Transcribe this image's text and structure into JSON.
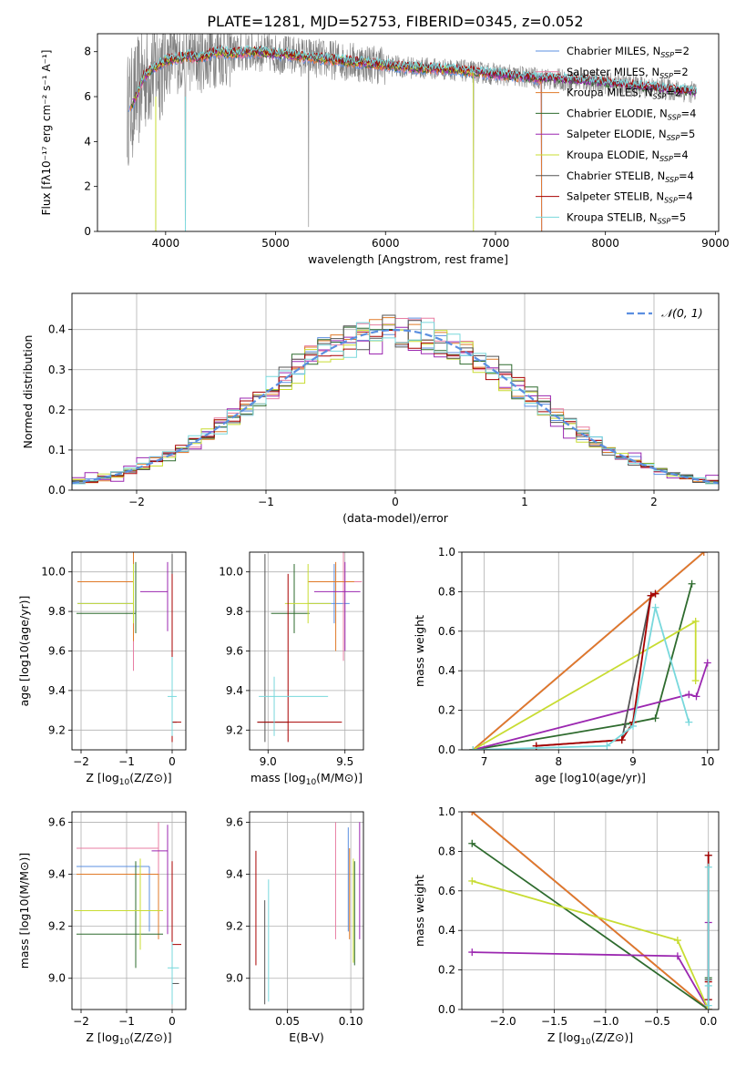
{
  "figure": {
    "title": "PLATE=1281, MJD=52753, FIBERID=0345, z=0.052"
  },
  "colors": {
    "chabrier_miles": "#5b8fe0",
    "salpeter_miles": "#e87ea3",
    "kroupa_miles": "#e07a28",
    "chabrier_elodie": "#2e6b2e",
    "salpeter_elodie": "#9b27b0",
    "kroupa_elodie": "#c8dc32",
    "chabrier_stelib": "#555555",
    "salpeter_stelib": "#a80000",
    "kroupa_stelib": "#78d8dc",
    "gauss": "#5b8fe0",
    "spectrum": "#808080"
  },
  "models": [
    {
      "key": "chabrier_miles",
      "label": "Chabrier MILES, N",
      "nssp": "=2"
    },
    {
      "key": "salpeter_miles",
      "label": "Salpeter MILES, N",
      "nssp": "=2"
    },
    {
      "key": "kroupa_miles",
      "label": "Kroupa MILES, N",
      "nssp": "=2"
    },
    {
      "key": "chabrier_elodie",
      "label": "Chabrier ELODIE, N",
      "nssp": "=4"
    },
    {
      "key": "salpeter_elodie",
      "label": "Salpeter ELODIE, N",
      "nssp": "=5"
    },
    {
      "key": "kroupa_elodie",
      "label": "Kroupa ELODIE, N",
      "nssp": "=4"
    },
    {
      "key": "chabrier_stelib",
      "label": "Chabrier STELIB, N",
      "nssp": "=4"
    },
    {
      "key": "salpeter_stelib",
      "label": "Salpeter STELIB, N",
      "nssp": "=4"
    },
    {
      "key": "kroupa_stelib",
      "label": "Kroupa STELIB, N",
      "nssp": "=5"
    }
  ],
  "legend_ssp_subscript": "SSP",
  "chart_data": [
    {
      "id": "spectrum",
      "type": "line",
      "xlabel": "wavelength [Angstrom, rest frame]",
      "ylabel": "Flux [fλ10⁻¹⁷ erg cm⁻² s⁻¹ A⁻¹]",
      "xlim": [
        3380,
        9030
      ],
      "ylim": [
        0,
        8.8
      ],
      "xticks": [
        4000,
        5000,
        6000,
        7000,
        8000,
        9000
      ],
      "yticks": [
        0,
        2,
        4,
        6,
        8
      ],
      "legend_placement": "right",
      "continuum": {
        "x": [
          3650,
          3700,
          3750,
          3800,
          3900,
          4000,
          4100,
          4200,
          4300,
          4400,
          4500,
          4600,
          4800,
          5000,
          5200,
          5400,
          5600,
          5800,
          6000,
          6200,
          6400,
          6600,
          6800,
          7000,
          7200,
          7400,
          7600,
          7800,
          8000,
          8200,
          8400,
          8600,
          8800
        ],
        "y": [
          5.4,
          5.7,
          6.2,
          6.9,
          7.3,
          7.6,
          7.7,
          7.8,
          7.7,
          7.9,
          8.0,
          7.9,
          8.0,
          7.9,
          7.8,
          7.7,
          7.6,
          7.5,
          7.4,
          7.3,
          7.25,
          7.2,
          7.1,
          7.0,
          6.9,
          6.8,
          6.75,
          6.7,
          6.6,
          6.5,
          6.4,
          6.3,
          6.2
        ]
      }
    },
    {
      "id": "residuals",
      "type": "line",
      "xlabel": "(data-model)/error",
      "ylabel": "Normed distribution",
      "xlim": [
        -2.5,
        2.5
      ],
      "ylim": [
        0,
        0.49
      ],
      "xticks": [
        -2,
        -1,
        0,
        1,
        2
      ],
      "yticks": [
        0.0,
        0.1,
        0.2,
        0.3,
        0.4
      ],
      "grid": true,
      "legend": "𝒩(0, 1)",
      "legend_placement": "top-right",
      "gauss": {
        "mean": 0,
        "sigma": 1
      }
    },
    {
      "id": "age_vs_Z",
      "type": "scatter",
      "xlabel": "Z [log",
      "xlabel_sub": "10",
      "xlabel_rest": "(Z/Z⊙)]",
      "ylabel": "age  [log10(age/yr)]",
      "xlim": [
        -2.2,
        0.3
      ],
      "ylim": [
        9.1,
        10.1
      ],
      "xticks": [
        -2,
        -1,
        0
      ],
      "yticks": [
        9.2,
        9.4,
        9.6,
        9.8,
        10.0
      ],
      "grid": true,
      "points": [
        {
          "model": "chabrier_miles",
          "x": -0.85,
          "y": 9.84,
          "xerr": [
            1.23,
            0
          ],
          "yerr": [
            0.2,
            0.2
          ]
        },
        {
          "model": "salpeter_miles",
          "x": -0.85,
          "y": 9.95,
          "xerr": [
            1.23,
            0
          ],
          "yerr": [
            0.45,
            0.15
          ]
        },
        {
          "model": "kroupa_miles",
          "x": -0.85,
          "y": 9.95,
          "xerr": [
            1.23,
            0
          ],
          "yerr": [
            0.3,
            0.15
          ]
        },
        {
          "model": "chabrier_elodie",
          "x": -0.8,
          "y": 9.79,
          "xerr": [
            1.3,
            0
          ],
          "yerr": [
            0.1,
            0.26
          ]
        },
        {
          "model": "salpeter_elodie",
          "x": -0.1,
          "y": 9.9,
          "xerr": [
            0.6,
            0
          ],
          "yerr": [
            0.2,
            0.15
          ]
        },
        {
          "model": "kroupa_elodie",
          "x": -0.85,
          "y": 9.84,
          "xerr": [
            1.23,
            0
          ],
          "yerr": [
            0.1,
            0.2
          ]
        },
        {
          "model": "chabrier_stelib",
          "x": 0.0,
          "y": 9.24,
          "xerr": [
            0,
            0.1
          ],
          "yerr": [
            0.1,
            0.85
          ]
        },
        {
          "model": "salpeter_stelib",
          "x": 0.0,
          "y": 9.24,
          "xerr": [
            0,
            0.2
          ],
          "yerr": [
            0.1,
            0.75
          ]
        },
        {
          "model": "kroupa_stelib",
          "x": 0.0,
          "y": 9.37,
          "xerr": [
            0.1,
            0.1
          ],
          "yerr": [
            0.2,
            0.2
          ]
        }
      ]
    },
    {
      "id": "age_vs_mass",
      "type": "scatter",
      "xlabel": "mass [log",
      "xlabel_sub": "10",
      "xlabel_rest": "(M/M⊙)]",
      "ylabel": "",
      "xlim": [
        8.88,
        9.62
      ],
      "ylim": [
        9.1,
        10.1
      ],
      "xticks": [
        9.0,
        9.5
      ],
      "yticks": [
        9.2,
        9.4,
        9.6,
        9.8,
        10.0
      ],
      "grid": true,
      "points": [
        {
          "model": "chabrier_miles",
          "x": 9.43,
          "y": 9.84,
          "xerr": [
            0.17,
            0.1
          ],
          "yerr": [
            0.1,
            0.2
          ]
        },
        {
          "model": "salpeter_miles",
          "x": 9.49,
          "y": 9.95,
          "xerr": [
            0.2,
            0.12
          ],
          "yerr": [
            0.4,
            0.15
          ]
        },
        {
          "model": "kroupa_miles",
          "x": 9.44,
          "y": 9.95,
          "xerr": [
            0.18,
            0.12
          ],
          "yerr": [
            0.35,
            0.1
          ]
        },
        {
          "model": "chabrier_elodie",
          "x": 9.17,
          "y": 9.79,
          "xerr": [
            0.15,
            0.1
          ],
          "yerr": [
            0.1,
            0.25
          ]
        },
        {
          "model": "salpeter_elodie",
          "x": 9.5,
          "y": 9.9,
          "xerr": [
            0.2,
            0.1
          ],
          "yerr": [
            0.3,
            0.15
          ]
        },
        {
          "model": "kroupa_elodie",
          "x": 9.26,
          "y": 9.84,
          "xerr": [
            0.15,
            0.15
          ],
          "yerr": [
            0.1,
            0.2
          ]
        },
        {
          "model": "chabrier_stelib",
          "x": 8.98,
          "y": 9.24,
          "xerr": [
            0.05,
            0.15
          ],
          "yerr": [
            0.1,
            0.85
          ]
        },
        {
          "model": "salpeter_stelib",
          "x": 9.13,
          "y": 9.24,
          "xerr": [
            0.2,
            0.35
          ],
          "yerr": [
            0.1,
            0.75
          ]
        },
        {
          "model": "kroupa_stelib",
          "x": 9.04,
          "y": 9.37,
          "xerr": [
            0.1,
            0.35
          ],
          "yerr": [
            0.2,
            0.1
          ]
        }
      ]
    },
    {
      "id": "weight_vs_age",
      "type": "line",
      "xlabel": "age  [log10(age/yr)]",
      "ylabel": "mass weight",
      "xlim": [
        6.7,
        10.15
      ],
      "ylim": [
        0,
        1.0
      ],
      "xticks": [
        7,
        8,
        9,
        10
      ],
      "yticks": [
        0.0,
        0.2,
        0.4,
        0.6,
        0.8,
        1.0
      ],
      "grid": true,
      "series": [
        {
          "model": "chabrier_miles",
          "x": [
            6.85,
            9.95
          ],
          "y": [
            0.0,
            1.0
          ]
        },
        {
          "model": "salpeter_miles",
          "x": [
            6.85,
            9.95
          ],
          "y": [
            0.0,
            1.0
          ]
        },
        {
          "model": "kroupa_miles",
          "x": [
            6.85,
            9.95
          ],
          "y": [
            0.0,
            1.0
          ]
        },
        {
          "model": "chabrier_elodie",
          "x": [
            6.85,
            8.9,
            9.3,
            9.79
          ],
          "y": [
            0.0,
            0.13,
            0.16,
            0.84
          ]
        },
        {
          "model": "salpeter_elodie",
          "x": [
            6.85,
            9.75,
            9.85,
            10.0
          ],
          "y": [
            0.0,
            0.28,
            0.27,
            0.44
          ]
        },
        {
          "model": "kroupa_elodie",
          "x": [
            6.85,
            9.84,
            9.84
          ],
          "y": [
            0.0,
            0.65,
            0.35
          ]
        },
        {
          "model": "chabrier_stelib",
          "x": [
            7.7,
            8.85,
            9.24,
            9.3
          ],
          "y": [
            0.02,
            0.05,
            0.78,
            0.79
          ]
        },
        {
          "model": "salpeter_stelib",
          "x": [
            7.7,
            8.85,
            9.0,
            9.24,
            9.3
          ],
          "y": [
            0.02,
            0.05,
            0.14,
            0.78,
            0.79
          ]
        },
        {
          "model": "kroupa_stelib",
          "x": [
            6.85,
            8.65,
            9.0,
            9.3,
            9.75
          ],
          "y": [
            0.0,
            0.02,
            0.12,
            0.72,
            0.14
          ]
        }
      ]
    },
    {
      "id": "mass_vs_Z",
      "type": "scatter",
      "xlabel": "Z [log",
      "xlabel_sub": "10",
      "xlabel_rest": "(Z/Z⊙)]",
      "ylabel": "mass [log10(M/M⊙)]",
      "xlim": [
        -2.2,
        0.3
      ],
      "ylim": [
        8.88,
        9.64
      ],
      "xticks": [
        -2,
        -1,
        0
      ],
      "yticks": [
        9.0,
        9.2,
        9.4,
        9.6
      ],
      "grid": true,
      "points": [
        {
          "model": "chabrier_miles",
          "x": -0.5,
          "y": 9.43,
          "xerr": [
            1.6,
            0
          ],
          "yerr": [
            0.25,
            0.0
          ]
        },
        {
          "model": "salpeter_miles",
          "x": -0.3,
          "y": 9.5,
          "xerr": [
            1.8,
            0
          ],
          "yerr": [
            0.35,
            0.1
          ]
        },
        {
          "model": "kroupa_miles",
          "x": -0.3,
          "y": 9.4,
          "xerr": [
            1.8,
            0
          ],
          "yerr": [
            0.25,
            0.0
          ]
        },
        {
          "model": "chabrier_elodie",
          "x": -0.8,
          "y": 9.17,
          "xerr": [
            1.3,
            0.6
          ],
          "yerr": [
            0.13,
            0.28
          ]
        },
        {
          "model": "salpeter_elodie",
          "x": -0.1,
          "y": 9.49,
          "xerr": [
            0.35,
            0
          ],
          "yerr": [
            0.32,
            0.1
          ]
        },
        {
          "model": "kroupa_elodie",
          "x": -0.7,
          "y": 9.26,
          "xerr": [
            1.45,
            0.5
          ],
          "yerr": [
            0.15,
            0.2
          ]
        },
        {
          "model": "chabrier_stelib",
          "x": 0.0,
          "y": 8.98,
          "xerr": [
            0,
            0.15
          ],
          "yerr": [
            0.0,
            0.0
          ]
        },
        {
          "model": "salpeter_stelib",
          "x": 0.0,
          "y": 9.13,
          "xerr": [
            0,
            0.2
          ],
          "yerr": [
            0.1,
            0.32
          ]
        },
        {
          "model": "kroupa_stelib",
          "x": 0.0,
          "y": 9.04,
          "xerr": [
            0.1,
            0.15
          ],
          "yerr": [
            0.14,
            0.1
          ]
        }
      ]
    },
    {
      "id": "mass_vs_EBV",
      "type": "scatter",
      "xlabel": "E(B-V)",
      "ylabel": "",
      "xlim": [
        0.02,
        0.11
      ],
      "ylim": [
        8.88,
        9.64
      ],
      "xticks": [
        0.05,
        0.1
      ],
      "yticks": [
        9.0,
        9.2,
        9.4,
        9.6
      ],
      "grid": true,
      "points": [
        {
          "model": "chabrier_miles",
          "x": 0.098,
          "y": 9.43,
          "yerr": [
            0.25,
            0.15
          ]
        },
        {
          "model": "salpeter_miles",
          "x": 0.088,
          "y": 9.5,
          "yerr": [
            0.35,
            0.1
          ]
        },
        {
          "model": "kroupa_miles",
          "x": 0.099,
          "y": 9.4,
          "yerr": [
            0.25,
            0.1
          ]
        },
        {
          "model": "chabrier_elodie",
          "x": 0.103,
          "y": 9.25,
          "yerr": [
            0.2,
            0.2
          ]
        },
        {
          "model": "salpeter_elodie",
          "x": 0.107,
          "y": 9.4,
          "yerr": [
            0.25,
            0.2
          ]
        },
        {
          "model": "kroupa_elodie",
          "x": 0.102,
          "y": 9.26,
          "yerr": [
            0.2,
            0.2
          ]
        },
        {
          "model": "chabrier_stelib",
          "x": 0.032,
          "y": 9.1,
          "yerr": [
            0.2,
            0.2
          ]
        },
        {
          "model": "salpeter_stelib",
          "x": 0.025,
          "y": 9.27,
          "yerr": [
            0.22,
            0.22
          ]
        },
        {
          "model": "kroupa_stelib",
          "x": 0.035,
          "y": 9.15,
          "yerr": [
            0.24,
            0.23
          ]
        }
      ]
    },
    {
      "id": "weight_vs_Z",
      "type": "line",
      "xlabel": "Z [log",
      "xlabel_sub": "10",
      "xlabel_rest": "(Z/Z⊙)]",
      "ylabel": "mass weight",
      "xlim": [
        -2.4,
        0.1
      ],
      "ylim": [
        0,
        1.0
      ],
      "xticks": [
        -2.0,
        -1.5,
        -1.0,
        -0.5,
        0.0
      ],
      "yticks": [
        0.0,
        0.2,
        0.4,
        0.6,
        0.8,
        1.0
      ],
      "grid": true,
      "series": [
        {
          "model": "chabrier_miles",
          "x": [
            -2.3,
            0.0
          ],
          "y": [
            1.0,
            0.0
          ]
        },
        {
          "model": "salpeter_miles",
          "x": [
            -2.3,
            0.0
          ],
          "y": [
            1.0,
            0.0
          ]
        },
        {
          "model": "kroupa_miles",
          "x": [
            -2.3,
            0.0
          ],
          "y": [
            1.0,
            0.0
          ]
        },
        {
          "model": "chabrier_elodie",
          "x": [
            -2.3,
            0.0,
            0.0
          ],
          "y": [
            0.84,
            0.0,
            0.16
          ]
        },
        {
          "model": "salpeter_elodie",
          "x": [
            -2.3,
            -0.3,
            0.0,
            0.0
          ],
          "y": [
            0.29,
            0.27,
            0.0,
            0.44
          ]
        },
        {
          "model": "kroupa_elodie",
          "x": [
            -2.3,
            -0.3,
            0.0
          ],
          "y": [
            0.65,
            0.35,
            0.0
          ]
        },
        {
          "model": "chabrier_stelib",
          "x": [
            0.0,
            0.0,
            0.0
          ],
          "y": [
            0.05,
            0.15,
            0.78
          ]
        },
        {
          "model": "salpeter_stelib",
          "x": [
            0.0,
            0.0,
            0.0
          ],
          "y": [
            0.05,
            0.14,
            0.78
          ]
        },
        {
          "model": "kroupa_stelib",
          "x": [
            0.0,
            0.0,
            0.0
          ],
          "y": [
            0.02,
            0.12,
            0.72
          ]
        }
      ]
    }
  ]
}
